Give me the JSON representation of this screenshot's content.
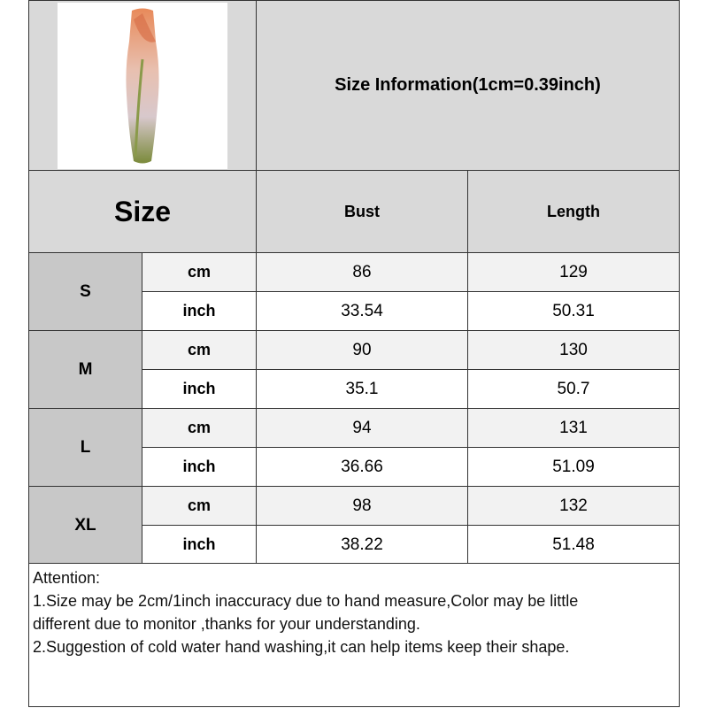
{
  "title": "Size Information(1cm=0.39inch)",
  "product_image": {
    "icon": "tulip-print-bodycon-dress-photo",
    "colors": [
      "#e88a5a",
      "#e8d4d4",
      "#7a8a3a"
    ]
  },
  "header": {
    "size": "Size",
    "columns": [
      "Bust",
      "Length"
    ]
  },
  "rows": [
    {
      "size": "S",
      "cm": {
        "unit": "cm",
        "values": [
          "86",
          "129"
        ]
      },
      "inch": {
        "unit": "inch",
        "values": [
          "33.54",
          "50.31"
        ]
      }
    },
    {
      "size": "M",
      "cm": {
        "unit": "cm",
        "values": [
          "90",
          "130"
        ]
      },
      "inch": {
        "unit": "inch",
        "values": [
          "35.1",
          "50.7"
        ]
      }
    },
    {
      "size": "L",
      "cm": {
        "unit": "cm",
        "values": [
          "94",
          "131"
        ]
      },
      "inch": {
        "unit": "inch",
        "values": [
          "36.66",
          "51.09"
        ]
      }
    },
    {
      "size": "XL",
      "cm": {
        "unit": "cm",
        "values": [
          "98",
          "132"
        ]
      },
      "inch": {
        "unit": "inch",
        "values": [
          "38.22",
          "51.48"
        ]
      }
    }
  ],
  "attention": {
    "heading": "Attention:",
    "lines": [
      "1.Size may be 2cm/1inch inaccuracy due to hand measure,Color may be little",
      "different due to monitor ,thanks for your understanding.",
      "2.Suggestion of cold water hand washing,it can help items keep their shape."
    ]
  }
}
